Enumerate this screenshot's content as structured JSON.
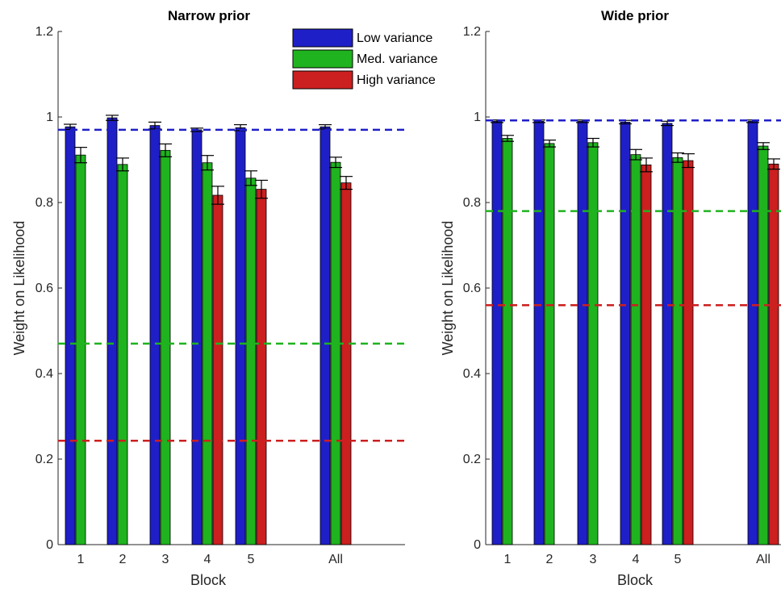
{
  "colors": {
    "low": "#1f1fc8",
    "med": "#1fb31f",
    "high": "#cc1f1f"
  },
  "legend": {
    "placement": "top-center",
    "entries": [
      "Low variance",
      "Med. variance",
      "High variance"
    ]
  },
  "chart_data": [
    {
      "type": "bar",
      "title": "Narrow prior",
      "xlabel": "Block",
      "ylabel": "Weight on Likelihood",
      "ylim": [
        0,
        1.2
      ],
      "yticks": [
        "0",
        "0.2",
        "0.4",
        "0.6",
        "0.8",
        "1",
        "1.2"
      ],
      "categories": [
        "1",
        "2",
        "3",
        "4",
        "5",
        "All"
      ],
      "series": [
        {
          "name": "Low variance",
          "values": [
            0.977,
            0.998,
            0.98,
            0.97,
            0.975,
            0.977
          ],
          "errors": [
            0.006,
            0.006,
            0.008,
            0.004,
            0.007,
            0.005
          ]
        },
        {
          "name": "Med. variance",
          "values": [
            0.911,
            0.889,
            0.922,
            0.893,
            0.857,
            0.894
          ],
          "errors": [
            0.018,
            0.015,
            0.015,
            0.017,
            0.017,
            0.012
          ]
        },
        {
          "name": "High variance",
          "values": [
            null,
            null,
            null,
            0.817,
            0.831,
            0.846
          ],
          "errors": [
            null,
            null,
            null,
            0.021,
            0.021,
            0.015
          ]
        }
      ],
      "reference_lines": {
        "Low variance": 0.97,
        "Med. variance": 0.47,
        "High variance": 0.243
      }
    },
    {
      "type": "bar",
      "title": "Wide prior",
      "xlabel": "Block",
      "ylabel": "Weight on Likelihood",
      "ylim": [
        0,
        1.2
      ],
      "yticks": [
        "0",
        "0.2",
        "0.4",
        "0.6",
        "0.8",
        "1",
        "1.2"
      ],
      "categories": [
        "1",
        "2",
        "3",
        "4",
        "5",
        "All"
      ],
      "series": [
        {
          "name": "Low variance",
          "values": [
            0.99,
            0.99,
            0.99,
            0.988,
            0.985,
            0.99
          ],
          "errors": [
            0.003,
            0.003,
            0.003,
            0.004,
            0.005,
            0.003
          ]
        },
        {
          "name": "Med. variance",
          "values": [
            0.95,
            0.938,
            0.94,
            0.912,
            0.905,
            0.932
          ],
          "errors": [
            0.007,
            0.008,
            0.01,
            0.012,
            0.011,
            0.008
          ]
        },
        {
          "name": "High variance",
          "values": [
            null,
            null,
            null,
            0.888,
            0.898,
            0.89
          ],
          "errors": [
            null,
            null,
            null,
            0.016,
            0.016,
            0.012
          ]
        }
      ],
      "reference_lines": {
        "Low variance": 0.992,
        "Med. variance": 0.78,
        "High variance": 0.56
      }
    }
  ]
}
